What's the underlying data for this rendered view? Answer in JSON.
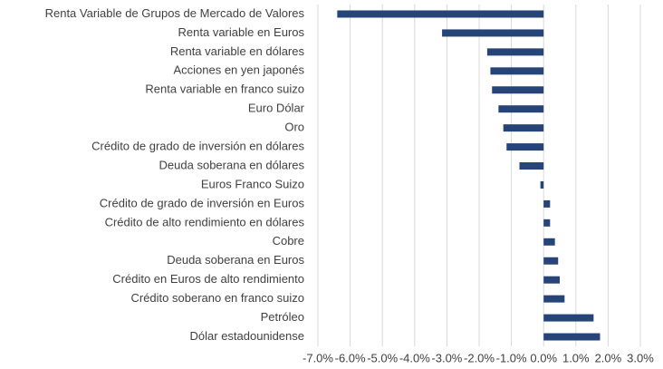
{
  "chart_data": {
    "type": "bar",
    "orientation": "horizontal",
    "categories": [
      "Renta Variable de Grupos de Mercado de Valores",
      "Renta variable en Euros",
      "Renta variable en dólares",
      "Acciones en yen japonés",
      "Renta variable en franco suizo",
      "Euro Dólar",
      "Oro",
      "Crédito de grado de inversión en dólares",
      "Deuda soberana en dólares",
      "Euros Franco Suizo",
      "Crédito de grado de inversión en Euros",
      "Crédito de alto rendimiento en dólares",
      "Cobre",
      "Deuda soberana en Euros",
      "Crédito en Euros de alto rendimiento",
      "Crédito soberano en franco suizo",
      "Petróleo",
      "Dólar estadounidense"
    ],
    "values": [
      -6.4,
      -3.15,
      -1.75,
      -1.65,
      -1.6,
      -1.4,
      -1.25,
      -1.15,
      -0.75,
      -0.1,
      0.2,
      0.2,
      0.35,
      0.45,
      0.5,
      0.65,
      1.55,
      1.75
    ],
    "color": "#264478",
    "xlim": [
      -7,
      3
    ],
    "xticks": [
      {
        "value": -7,
        "label": "-7.0%"
      },
      {
        "value": -6,
        "label": "-6.0%"
      },
      {
        "value": -5,
        "label": "-5.0%"
      },
      {
        "value": -4,
        "label": "-4.0%"
      },
      {
        "value": -3,
        "label": "-3.0%"
      },
      {
        "value": -2,
        "label": "-2.0%"
      },
      {
        "value": -1,
        "label": "-1.0%"
      },
      {
        "value": 0,
        "label": "0.0%"
      },
      {
        "value": 1,
        "label": "1.0%"
      },
      {
        "value": 2,
        "label": "2.0%"
      },
      {
        "value": 3,
        "label": "3.0%"
      }
    ],
    "grid": true
  }
}
